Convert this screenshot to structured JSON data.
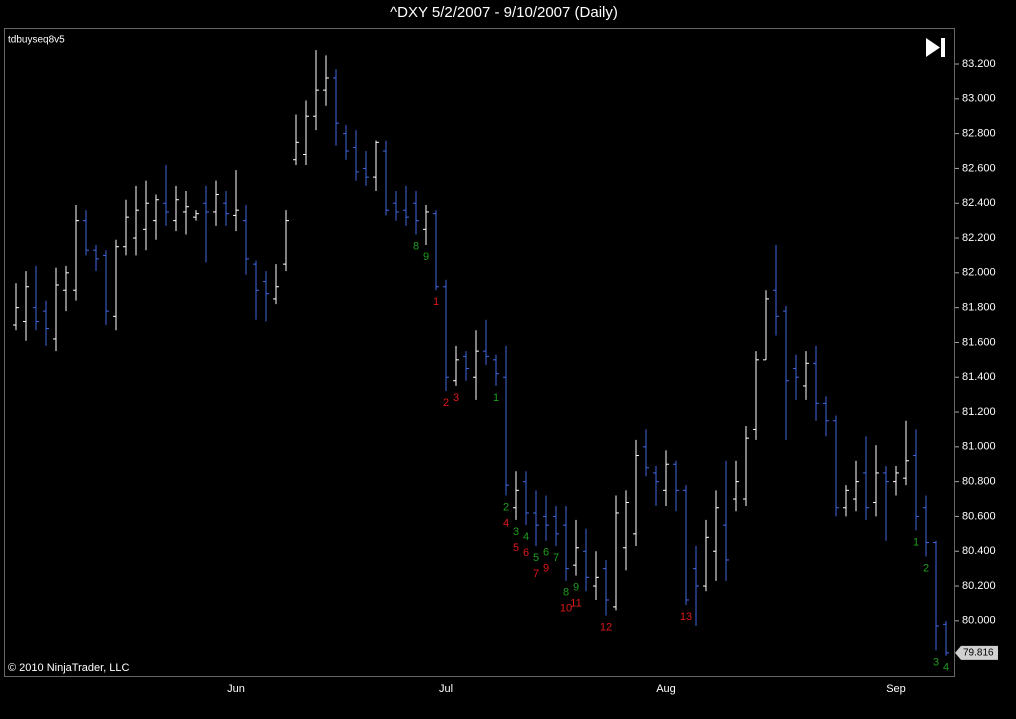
{
  "chart_data": {
    "type": "ohlc",
    "title": "^DXY  5/2/2007 - 9/10/2007 (Daily)",
    "indicator": "tdbuyseq8v5",
    "copyright": "© 2010 NinjaTrader, LLC",
    "up_color": "#ffffff",
    "down_color": "#4169e1",
    "categories": [
      null,
      null,
      null,
      null,
      null,
      null,
      null,
      null,
      null,
      null,
      null,
      null,
      null,
      null,
      null,
      null,
      null,
      null,
      null,
      null,
      null,
      null,
      "Jun",
      null,
      null,
      null,
      null,
      null,
      null,
      null,
      null,
      null,
      null,
      null,
      null,
      null,
      null,
      null,
      null,
      null,
      null,
      null,
      null,
      "Jul",
      null,
      null,
      null,
      null,
      null,
      null,
      null,
      null,
      null,
      null,
      null,
      null,
      null,
      null,
      null,
      null,
      null,
      null,
      null,
      null,
      null,
      "Aug",
      null,
      null,
      null,
      null,
      null,
      null,
      null,
      null,
      null,
      null,
      null,
      null,
      null,
      null,
      null,
      null,
      null,
      null,
      null,
      null,
      null,
      null,
      "Sep",
      null,
      null,
      null,
      null,
      null
    ],
    "open": [
      81.7,
      81.72,
      81.8,
      81.78,
      81.62,
      81.9,
      81.9,
      82.3,
      82.13,
      82.1,
      81.75,
      82.15,
      82.2,
      82.25,
      82.3,
      82.4,
      82.3,
      82.35,
      82.32,
      82.4,
      82.35,
      82.4,
      82.33,
      82.3,
      82.05,
      81.95,
      81.85,
      82.05,
      82.65,
      82.68,
      82.9,
      83.05,
      83.12,
      82.8,
      82.72,
      82.6,
      82.55,
      82.7,
      82.4,
      82.36,
      82.4,
      82.25,
      82.34,
      81.92,
      81.38,
      81.52,
      81.4,
      81.55,
      81.5,
      81.4,
      80.65,
      80.8,
      80.62,
      80.6,
      80.6,
      80.55,
      80.32,
      80.4,
      80.2,
      80.3,
      80.08,
      80.42,
      80.5,
      81.0,
      80.85,
      80.75,
      80.9,
      80.75,
      80.3,
      80.2,
      80.4,
      80.55,
      80.7,
      80.7,
      81.1,
      81.5,
      81.9,
      81.78,
      81.45,
      81.35,
      81.48,
      81.25,
      81.15,
      80.65,
      80.7,
      80.85,
      80.68,
      80.85,
      80.8,
      80.82,
      80.95,
      80.65,
      80.45,
      79.98
    ],
    "high": [
      81.94,
      82.01,
      82.04,
      81.84,
      82.03,
      82.04,
      82.39,
      82.36,
      82.16,
      82.13,
      82.19,
      82.42,
      82.5,
      82.53,
      82.45,
      82.62,
      82.5,
      82.47,
      82.36,
      82.5,
      82.53,
      82.47,
      82.59,
      82.39,
      82.07,
      82.01,
      82.05,
      82.36,
      82.91,
      82.99,
      83.28,
      83.25,
      83.17,
      82.85,
      82.82,
      82.7,
      82.76,
      82.76,
      82.47,
      82.5,
      82.47,
      82.39,
      82.36,
      81.96,
      81.58,
      81.55,
      81.67,
      81.73,
      81.53,
      81.58,
      80.86,
      80.86,
      80.75,
      80.72,
      80.66,
      80.66,
      80.58,
      80.53,
      80.4,
      80.35,
      80.72,
      80.75,
      81.04,
      81.1,
      80.89,
      80.98,
      80.92,
      80.78,
      80.43,
      80.58,
      80.75,
      80.92,
      80.92,
      81.12,
      81.55,
      81.9,
      82.16,
      81.81,
      81.53,
      81.55,
      81.58,
      81.29,
      81.18,
      80.78,
      80.92,
      81.06,
      81.01,
      80.89,
      80.89,
      81.15,
      81.1,
      80.72,
      80.46,
      80.0
    ],
    "low": [
      81.67,
      81.61,
      81.67,
      81.58,
      81.55,
      81.78,
      81.84,
      82.1,
      82.01,
      81.7,
      81.67,
      82.1,
      82.1,
      82.13,
      82.19,
      82.27,
      82.24,
      82.22,
      82.3,
      82.06,
      82.27,
      82.27,
      82.24,
      81.99,
      81.73,
      81.72,
      81.82,
      82.01,
      82.62,
      82.62,
      82.82,
      82.96,
      82.73,
      82.65,
      82.53,
      82.5,
      82.47,
      82.33,
      82.3,
      82.27,
      82.22,
      82.16,
      81.9,
      81.32,
      81.35,
      81.38,
      81.27,
      81.47,
      81.35,
      80.72,
      80.58,
      80.55,
      80.43,
      80.46,
      80.43,
      80.23,
      80.26,
      80.17,
      80.12,
      80.03,
      80.06,
      80.29,
      80.43,
      80.83,
      80.66,
      80.66,
      80.63,
      80.09,
      79.97,
      80.17,
      80.23,
      80.23,
      80.63,
      80.66,
      81.04,
      81.5,
      81.64,
      81.04,
      81.27,
      81.27,
      81.15,
      81.06,
      80.6,
      80.6,
      80.63,
      80.58,
      80.6,
      80.46,
      80.72,
      80.78,
      80.52,
      80.37,
      79.83,
      79.8
    ],
    "close": [
      81.8,
      81.92,
      81.72,
      81.68,
      81.93,
      82.0,
      82.3,
      82.13,
      82.08,
      81.78,
      82.15,
      82.32,
      82.36,
      82.4,
      82.42,
      82.35,
      82.42,
      82.38,
      82.34,
      82.35,
      82.45,
      82.34,
      82.36,
      82.08,
      81.9,
      81.88,
      81.92,
      82.3,
      82.75,
      82.9,
      83.05,
      83.12,
      82.86,
      82.7,
      82.58,
      82.55,
      82.75,
      82.36,
      82.35,
      82.32,
      82.3,
      82.35,
      81.92,
      81.4,
      81.5,
      81.45,
      81.55,
      81.52,
      81.42,
      80.78,
      80.75,
      80.62,
      80.55,
      80.55,
      80.5,
      80.3,
      80.42,
      80.25,
      80.25,
      80.12,
      80.62,
      80.68,
      80.95,
      80.88,
      80.8,
      80.9,
      80.75,
      80.12,
      80.2,
      80.48,
      80.65,
      80.35,
      80.8,
      81.05,
      81.5,
      81.85,
      81.75,
      81.38,
      81.4,
      81.48,
      81.25,
      81.15,
      80.65,
      80.75,
      80.8,
      80.65,
      80.85,
      80.8,
      80.85,
      80.92,
      80.6,
      80.45,
      79.97,
      79.816
    ],
    "annotations": [
      {
        "index": 40,
        "text": "8",
        "color": "#1e9e1e"
      },
      {
        "index": 41,
        "text": "9",
        "color": "#1e9e1e"
      },
      {
        "index": 42,
        "text": "1",
        "color": "#e01818"
      },
      {
        "index": 43,
        "text": "2",
        "color": "#e01818"
      },
      {
        "index": 44,
        "text": "3",
        "color": "#e01818"
      },
      {
        "index": 48,
        "text": "1",
        "color": "#1e9e1e"
      },
      {
        "index": 49,
        "text": "2",
        "color": "#1e9e1e"
      },
      {
        "index": 49,
        "text": "4",
        "color": "#e01818"
      },
      {
        "index": 50,
        "text": "3",
        "color": "#1e9e1e"
      },
      {
        "index": 50,
        "text": "5",
        "color": "#e01818"
      },
      {
        "index": 51,
        "text": "4",
        "color": "#1e9e1e"
      },
      {
        "index": 51,
        "text": "6",
        "color": "#e01818"
      },
      {
        "index": 52,
        "text": "5",
        "color": "#1e9e1e"
      },
      {
        "index": 52,
        "text": "7",
        "color": "#e01818"
      },
      {
        "index": 53,
        "text": "6",
        "color": "#1e9e1e"
      },
      {
        "index": 53,
        "text": "9",
        "color": "#e01818"
      },
      {
        "index": 54,
        "text": "7",
        "color": "#1e9e1e"
      },
      {
        "index": 55,
        "text": "8",
        "color": "#1e9e1e"
      },
      {
        "index": 55,
        "text": "10",
        "color": "#e01818"
      },
      {
        "index": 56,
        "text": "9",
        "color": "#1e9e1e"
      },
      {
        "index": 56,
        "text": "11",
        "color": "#e01818"
      },
      {
        "index": 59,
        "text": "12",
        "color": "#e01818"
      },
      {
        "index": 67,
        "text": "13",
        "color": "#e01818"
      },
      {
        "index": 90,
        "text": "1",
        "color": "#1e9e1e"
      },
      {
        "index": 91,
        "text": "2",
        "color": "#1e9e1e"
      },
      {
        "index": 92,
        "text": "3",
        "color": "#1e9e1e"
      },
      {
        "index": 93,
        "text": "4",
        "color": "#1e9e1e"
      }
    ],
    "ylim": [
      79.683,
      83.407
    ],
    "yticks": [
      {
        "value": 80.0,
        "label": "80.000"
      },
      {
        "value": 80.2,
        "label": "80.200"
      },
      {
        "value": 80.4,
        "label": "80.400"
      },
      {
        "value": 80.6,
        "label": "80.600"
      },
      {
        "value": 80.8,
        "label": "80.800"
      },
      {
        "value": 81.0,
        "label": "81.000"
      },
      {
        "value": 81.2,
        "label": "81.200"
      },
      {
        "value": 81.4,
        "label": "81.400"
      },
      {
        "value": 81.6,
        "label": "81.600"
      },
      {
        "value": 81.8,
        "label": "81.800"
      },
      {
        "value": 82.0,
        "label": "82.000"
      },
      {
        "value": 82.2,
        "label": "82.200"
      },
      {
        "value": 82.4,
        "label": "82.400"
      },
      {
        "value": 82.6,
        "label": "82.600"
      },
      {
        "value": 82.8,
        "label": "82.800"
      },
      {
        "value": 83.0,
        "label": "83.000"
      },
      {
        "value": 83.2,
        "label": "83.200"
      }
    ]
  }
}
